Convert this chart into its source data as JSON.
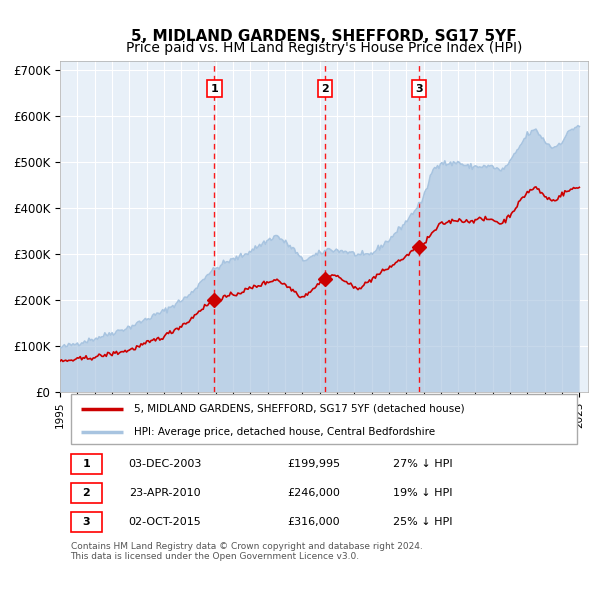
{
  "title": "5, MIDLAND GARDENS, SHEFFORD, SG17 5YF",
  "subtitle": "Price paid vs. HM Land Registry's House Price Index (HPI)",
  "ylabel": "",
  "xlim_start": 1995.0,
  "xlim_end": 2025.5,
  "ylim": [
    0,
    720000
  ],
  "yticks": [
    0,
    100000,
    200000,
    300000,
    400000,
    500000,
    600000,
    700000
  ],
  "ytick_labels": [
    "£0",
    "£100K",
    "£200K",
    "£300K",
    "£400K",
    "£500K",
    "£600K",
    "£700K"
  ],
  "xticks": [
    1995,
    1996,
    1997,
    1998,
    1999,
    2000,
    2001,
    2002,
    2003,
    2004,
    2005,
    2006,
    2007,
    2008,
    2009,
    2010,
    2011,
    2012,
    2013,
    2014,
    2015,
    2016,
    2017,
    2018,
    2019,
    2020,
    2021,
    2022,
    2023,
    2024,
    2025
  ],
  "hpi_color": "#a8c4e0",
  "price_color": "#cc0000",
  "marker_color": "#cc0000",
  "dashed_line_color": "#ff0000",
  "bg_color": "#ddeeff",
  "plot_bg_color": "#e8f0f8",
  "grid_color": "#ffffff",
  "sale1_x": 2003.92,
  "sale1_y": 199995,
  "sale1_label": "1",
  "sale2_x": 2010.32,
  "sale2_y": 246000,
  "sale2_label": "2",
  "sale3_x": 2015.75,
  "sale3_y": 316000,
  "sale3_label": "3",
  "legend_line1": "5, MIDLAND GARDENS, SHEFFORD, SG17 5YF (detached house)",
  "legend_line2": "HPI: Average price, detached house, Central Bedfordshire",
  "table_row1": [
    "1",
    "03-DEC-2003",
    "£199,995",
    "27% ↓ HPI"
  ],
  "table_row2": [
    "2",
    "23-APR-2010",
    "£246,000",
    "19% ↓ HPI"
  ],
  "table_row3": [
    "3",
    "02-OCT-2015",
    "£316,000",
    "25% ↓ HPI"
  ],
  "footer": "Contains HM Land Registry data © Crown copyright and database right 2024.\nThis data is licensed under the Open Government Licence v3.0.",
  "title_fontsize": 11,
  "subtitle_fontsize": 10
}
